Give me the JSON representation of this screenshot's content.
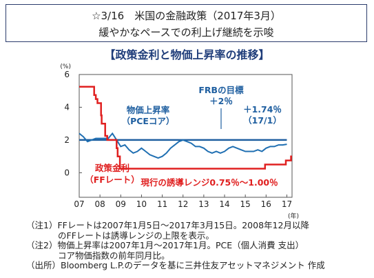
{
  "header": {
    "line1": "☆3/16　米国の金融政策（2017年3月）",
    "line2": "緩やかなペースでの利上げ継続を示唆"
  },
  "chart_title": "【政策金利と物価上昇率の推移】",
  "chart_data": {
    "type": "line",
    "y_unit": "(%)",
    "x_unit": "(年)",
    "ylim": [
      -1.5,
      6
    ],
    "xlim": [
      2007.0,
      2017.25
    ],
    "y_ticks": [
      "0",
      "2",
      "4",
      "6"
    ],
    "x_ticks": [
      "07",
      "08",
      "09",
      "10",
      "11",
      "12",
      "13",
      "14",
      "15",
      "16",
      "17"
    ],
    "grid": false,
    "colors": {
      "pce": "#1f6fb2",
      "target": "#1f5fa0",
      "ff": "#e02020",
      "label_blue": "#1f5fa0",
      "label_red": "#e02020"
    },
    "series": [
      {
        "name": "物価上昇率（PCEコア）",
        "x": [
          2007.0,
          2007.2,
          2007.4,
          2007.6,
          2007.8,
          2008.0,
          2008.2,
          2008.4,
          2008.6,
          2008.8,
          2009.0,
          2009.2,
          2009.4,
          2009.6,
          2009.8,
          2010.0,
          2010.2,
          2010.4,
          2010.6,
          2010.8,
          2011.0,
          2011.2,
          2011.4,
          2011.6,
          2011.8,
          2012.0,
          2012.2,
          2012.4,
          2012.6,
          2012.8,
          2013.0,
          2013.2,
          2013.4,
          2013.6,
          2013.8,
          2014.0,
          2014.2,
          2014.4,
          2014.6,
          2014.8,
          2015.0,
          2015.2,
          2015.4,
          2015.6,
          2015.8,
          2016.0,
          2016.2,
          2016.4,
          2016.6,
          2016.8,
          2017.0
        ],
        "values": [
          2.4,
          2.2,
          1.9,
          2.0,
          2.1,
          2.1,
          2.1,
          2.1,
          2.4,
          2.0,
          1.6,
          1.7,
          1.4,
          1.2,
          1.3,
          1.5,
          1.3,
          1.1,
          1.0,
          0.9,
          1.0,
          1.2,
          1.5,
          1.7,
          1.9,
          2.0,
          1.9,
          1.8,
          1.6,
          1.6,
          1.5,
          1.3,
          1.2,
          1.3,
          1.2,
          1.3,
          1.5,
          1.6,
          1.5,
          1.4,
          1.3,
          1.3,
          1.3,
          1.4,
          1.3,
          1.5,
          1.6,
          1.6,
          1.7,
          1.7,
          1.74
        ]
      },
      {
        "name": "FRBの目標 ＋2％",
        "x": [
          2007.0,
          2017.0
        ],
        "values": [
          2,
          2
        ]
      },
      {
        "name": "政策金利（FFレート）",
        "x": [
          2007.0,
          2007.63,
          2007.72,
          2007.8,
          2007.88,
          2007.97,
          2008.05,
          2008.08,
          2008.25,
          2008.35,
          2008.8,
          2008.85,
          2008.96,
          2015.95,
          2016.95,
          2017.2
        ],
        "values": [
          5.25,
          5.25,
          4.75,
          4.5,
          4.25,
          4.25,
          3.5,
          3.0,
          2.25,
          2.0,
          1.5,
          1.0,
          0.25,
          0.5,
          0.75,
          1.0
        ]
      }
    ],
    "annotations": {
      "target_label": "FRBの目標",
      "target_value": "＋2％",
      "pce_label1": "物価上昇率",
      "pce_label2": "（PCEコア）",
      "latest_value": "＋1.74％",
      "latest_period": "（17/1）",
      "ff_label1": "政策金利",
      "ff_label2": "（FFレート）",
      "range_label": "現行の誘導レンジ0.75％～1.00％"
    }
  },
  "notes": {
    "note1_line1": "（注1）FFレートは2007年1月5日～2017年3月15日。2008年12月以降",
    "note1_line2": "のFFレートは誘導レンジの上限を表示。",
    "note2_line1": "（注2）物価上昇率は2007年1月～2017年1月。PCE（個人消費 支出）",
    "note2_line2": "コア物価指数の前年同月比。",
    "source": "（出所）Bloomberg L.P.のデータを基に三井住友アセットマネジメント 作成"
  }
}
